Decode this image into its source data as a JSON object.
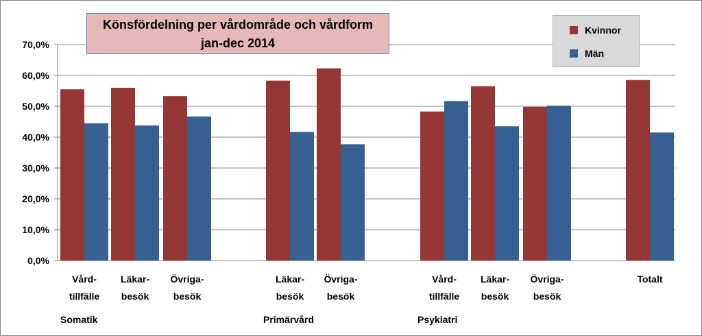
{
  "chart_data": {
    "type": "bar",
    "title": "Könsfördelning per vårdområde och vårdform",
    "subtitle": "jan-dec 2014",
    "ylim": [
      0,
      70
    ],
    "yticks": [
      "0,0%",
      "10,0%",
      "20,0%",
      "30,0%",
      "40,0%",
      "50,0%",
      "60,0%",
      "70,0%"
    ],
    "ytick_values": [
      0,
      10,
      20,
      30,
      40,
      50,
      60,
      70
    ],
    "grid": true,
    "legend_position": "top-right",
    "series": [
      {
        "name": "Kvinnor",
        "color": "#953735",
        "values": [
          55.5,
          56.0,
          53.3,
          58.3,
          62.3,
          48.3,
          56.5,
          49.8,
          58.5
        ]
      },
      {
        "name": "Män",
        "color": "#366092",
        "values": [
          44.5,
          43.8,
          46.7,
          41.7,
          37.7,
          51.7,
          43.5,
          50.2,
          41.5
        ]
      }
    ],
    "categories": [
      {
        "line1": "Vård-",
        "line2": "tillfälle"
      },
      {
        "line1": "Läkar-",
        "line2": "besök"
      },
      {
        "line1": "Övriga-",
        "line2": "besök"
      },
      {
        "line1": "Läkar-",
        "line2": "besök"
      },
      {
        "line1": "Övriga-",
        "line2": "besök"
      },
      {
        "line1": "Vård-",
        "line2": "tillfälle"
      },
      {
        "line1": "Läkar-",
        "line2": "besök"
      },
      {
        "line1": "Övriga-",
        "line2": "besök"
      },
      {
        "line1": "Totalt",
        "line2": ""
      }
    ],
    "groups": [
      "Somatik",
      "Primärvård",
      "Psykiatri"
    ]
  }
}
